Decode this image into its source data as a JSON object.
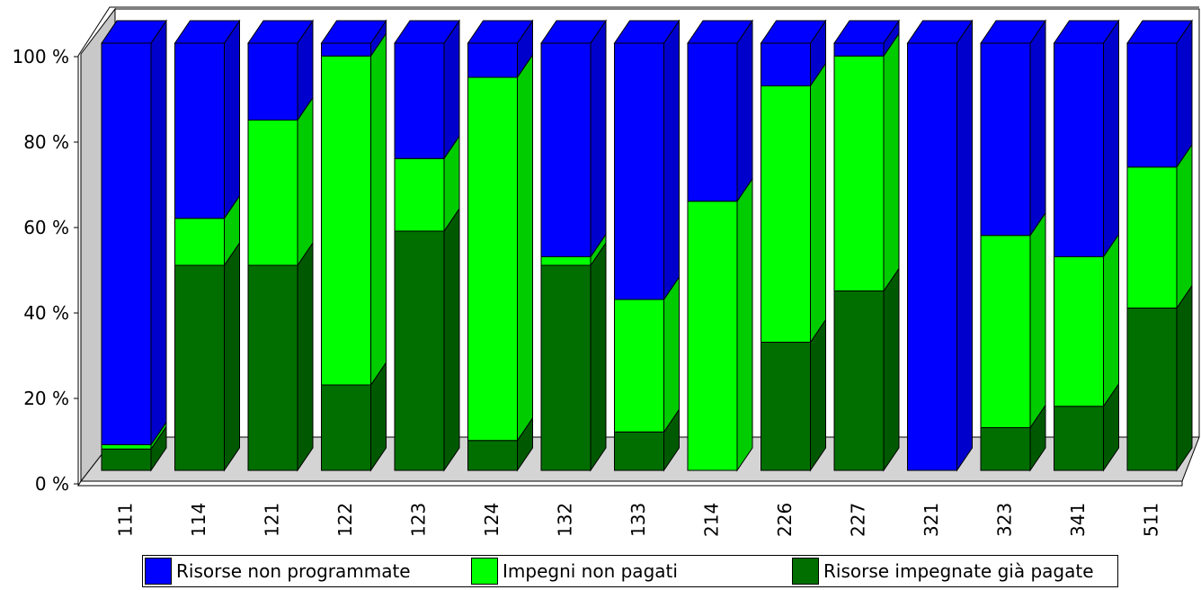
{
  "chart_data": {
    "type": "bar",
    "stacked": true,
    "percent": true,
    "three_d": true,
    "categories": [
      "111",
      "114",
      "121",
      "122",
      "123",
      "124",
      "132",
      "133",
      "214",
      "226",
      "227",
      "321",
      "323",
      "341",
      "511"
    ],
    "series": [
      {
        "name": "Risorse impegnate già pagate",
        "color": "#006f00",
        "values": [
          5,
          48,
          48,
          20,
          56,
          7,
          48,
          9,
          0,
          30,
          42,
          0,
          10,
          15,
          38
        ]
      },
      {
        "name": "Impegni non pagati",
        "color": "#00ff00",
        "values": [
          1,
          11,
          34,
          77,
          17,
          85,
          2,
          31,
          63,
          60,
          55,
          0,
          45,
          35,
          33
        ]
      },
      {
        "name": "Risorse non programmate",
        "color": "#0000ff",
        "values": [
          94,
          41,
          18,
          3,
          27,
          8,
          50,
          60,
          37,
          10,
          3,
          100,
          45,
          50,
          29
        ]
      }
    ],
    "legend_order": [
      "Risorse non programmate",
      "Impegni non pagati",
      "Risorse impegnate già pagate"
    ],
    "y_ticks": [
      "0 %",
      "20 %",
      "40 %",
      "60 %",
      "80 %",
      "100 %"
    ],
    "ylim": [
      0,
      100
    ],
    "legend_position": "bottom",
    "grid": false
  }
}
